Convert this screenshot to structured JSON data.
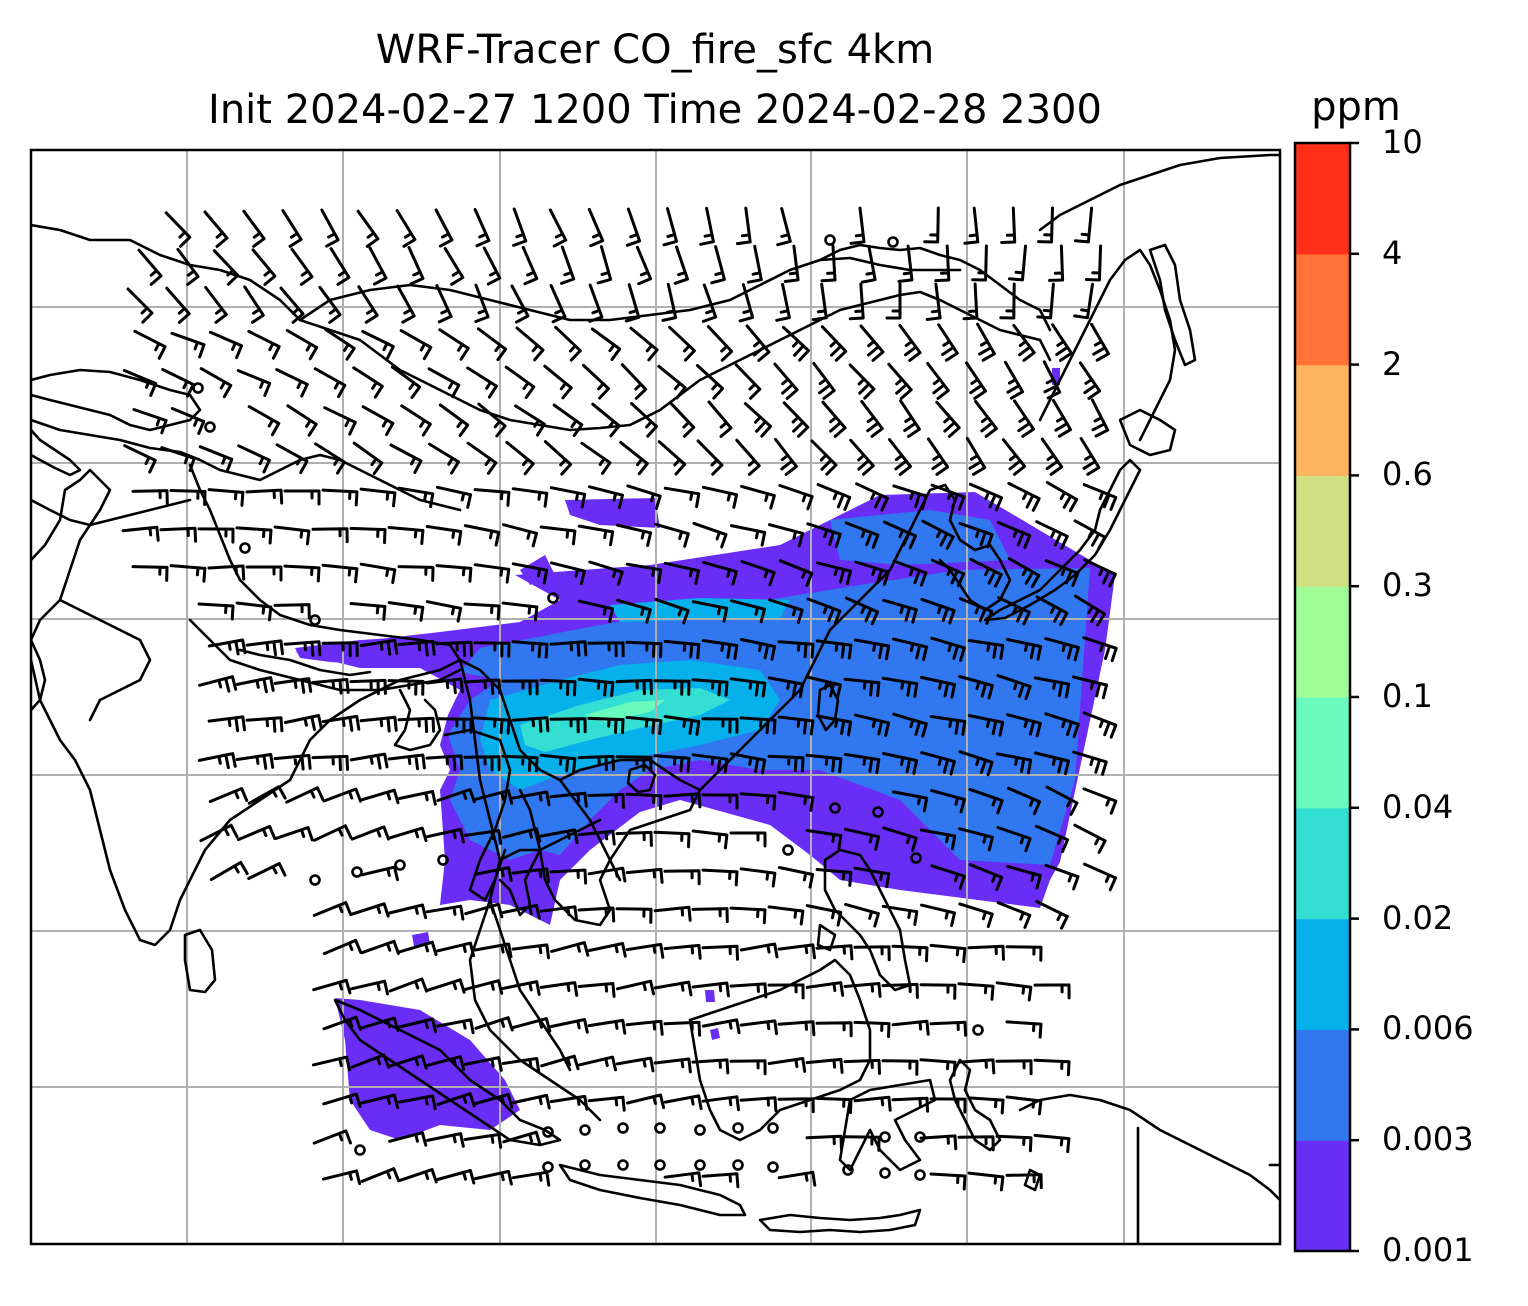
{
  "title": {
    "line1": "WRF-Tracer CO_fire_sfc 4km",
    "line2": "Init 2024-02-27 1200 Time 2024-02-28 2300"
  },
  "colorbar": {
    "unit": "ppm",
    "levels": [
      "0.001",
      "0.003",
      "0.006",
      "0.02",
      "0.04",
      "0.1",
      "0.3",
      "0.6",
      "2",
      "4",
      "10"
    ],
    "colors": [
      "#6a2df6",
      "#3177f0",
      "#06b0ea",
      "#32dfd2",
      "#69fbbd",
      "#9ffc96",
      "#d0df82",
      "#feb45f",
      "#ff7339",
      "#ff2f19"
    ]
  },
  "map": {
    "coastline_color": "#000000",
    "gridline_color": "#b0b0b0",
    "features": [
      "coastlines",
      "country borders",
      "lat/lon gridlines",
      "wind barbs",
      "calm-wind circles"
    ]
  }
}
